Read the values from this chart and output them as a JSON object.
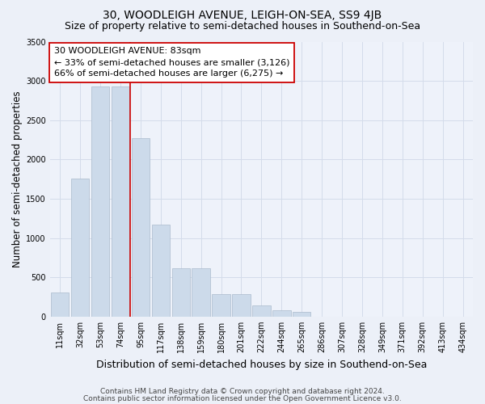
{
  "title": "30, WOODLEIGH AVENUE, LEIGH-ON-SEA, SS9 4JB",
  "subtitle": "Size of property relative to semi-detached houses in Southend-on-Sea",
  "xlabel": "Distribution of semi-detached houses by size in Southend-on-Sea",
  "ylabel": "Number of semi-detached properties",
  "footnote1": "Contains HM Land Registry data © Crown copyright and database right 2024.",
  "footnote2": "Contains public sector information licensed under the Open Government Licence v3.0.",
  "bar_labels": [
    "11sqm",
    "32sqm",
    "53sqm",
    "74sqm",
    "95sqm",
    "117sqm",
    "138sqm",
    "159sqm",
    "180sqm",
    "201sqm",
    "222sqm",
    "244sqm",
    "265sqm",
    "286sqm",
    "307sqm",
    "328sqm",
    "349sqm",
    "371sqm",
    "392sqm",
    "413sqm",
    "434sqm"
  ],
  "bar_values": [
    310,
    1760,
    2930,
    2930,
    2270,
    1170,
    610,
    610,
    290,
    290,
    140,
    80,
    60,
    0,
    0,
    0,
    0,
    0,
    0,
    0,
    0
  ],
  "bar_color": "#ccdaea",
  "bar_edgecolor": "#aabbcc",
  "red_line_x": 3.5,
  "property_label": "30 WOODLEIGH AVENUE: 83sqm",
  "smaller_pct": "33%",
  "smaller_count": "3,126",
  "larger_pct": "66%",
  "larger_count": "6,275",
  "annotation_box_color": "#ffffff",
  "annotation_box_edgecolor": "#cc0000",
  "ylim": [
    0,
    3500
  ],
  "yticks": [
    0,
    500,
    1000,
    1500,
    2000,
    2500,
    3000,
    3500
  ],
  "bg_color": "#ecf0f8",
  "plot_bg_color": "#eef2fa",
  "grid_color": "#d4dcea",
  "title_fontsize": 10,
  "subtitle_fontsize": 9,
  "xlabel_fontsize": 9,
  "ylabel_fontsize": 8.5,
  "annotation_fontsize": 8,
  "tick_fontsize": 7,
  "footnote_fontsize": 6.5
}
